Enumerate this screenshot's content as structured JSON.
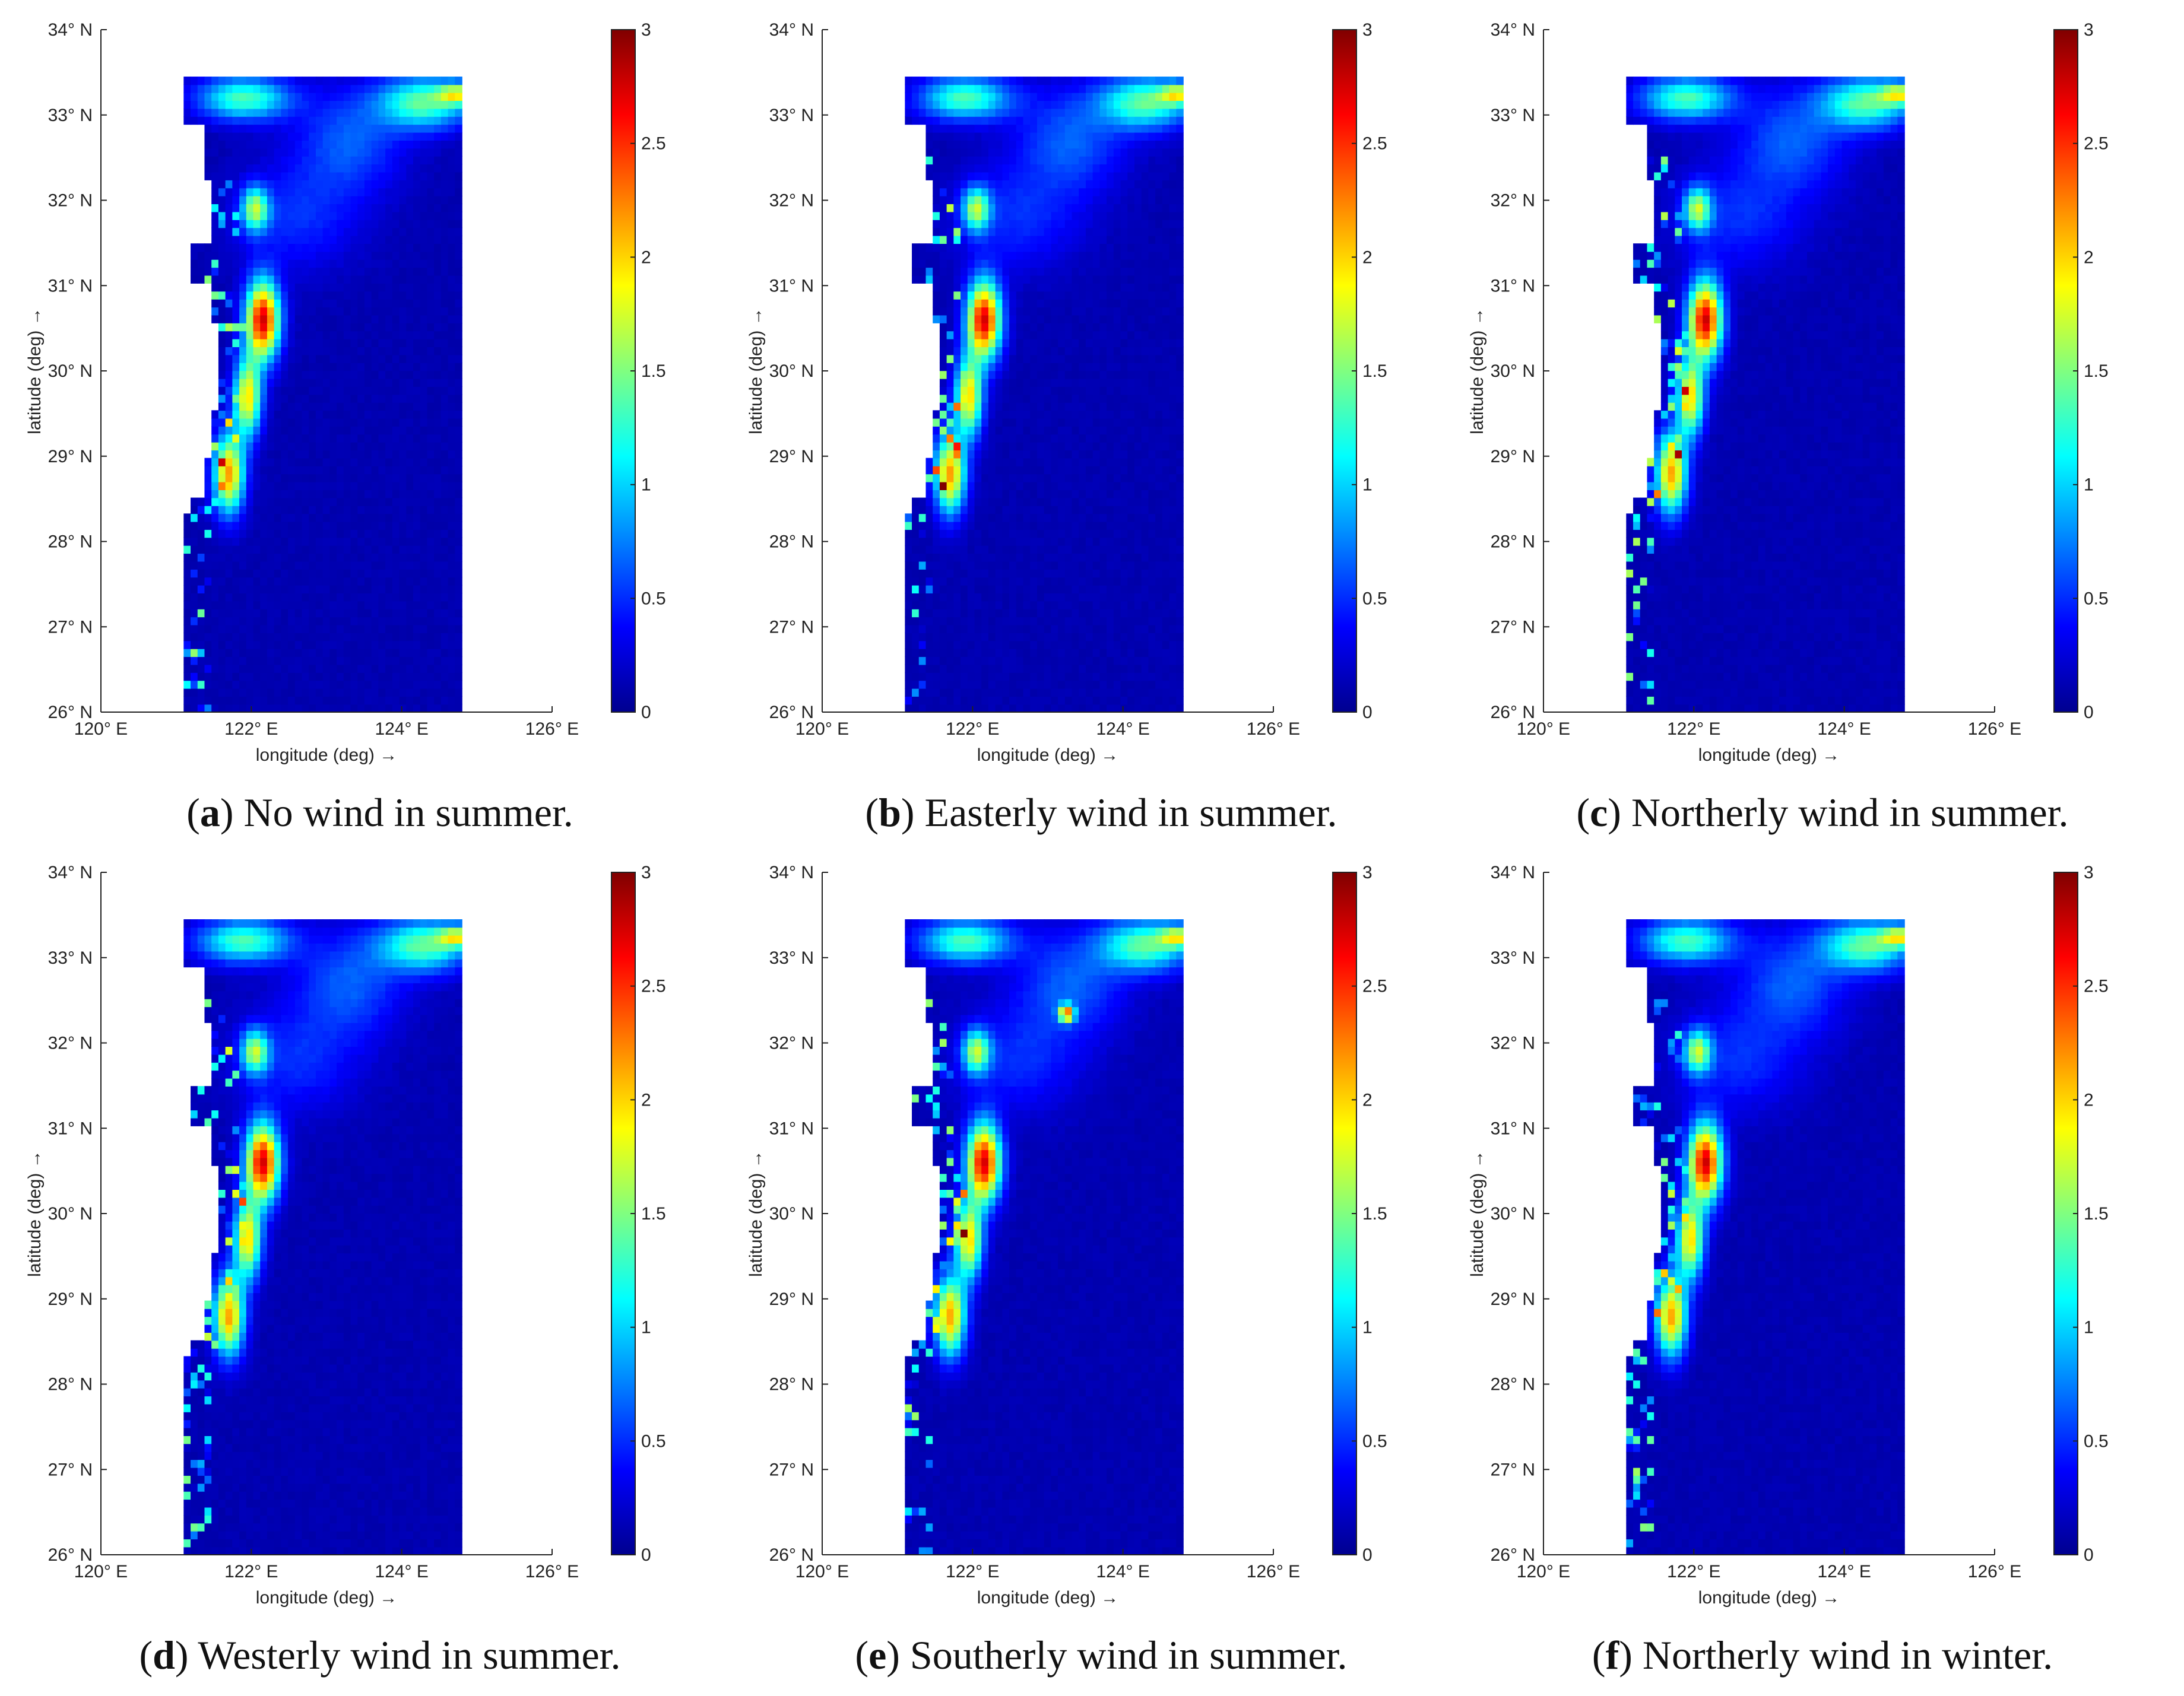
{
  "lat_ticks": [
    "34° N",
    "33° N",
    "32° N",
    "31° N",
    "30° N",
    "29° N",
    "28° N",
    "27° N",
    "26° N"
  ],
  "lon_ticks": [
    "120° E",
    "122° E",
    "124° E",
    "126° E"
  ],
  "xlabel": "longitude (deg) →",
  "ylabel": "latitude (deg) →",
  "colorbar": {
    "ticks": [
      "0",
      "0.5",
      "1",
      "1.5",
      "2",
      "2.5",
      "3"
    ],
    "colors": [
      "#00008f",
      "#0000ff",
      "#0080ff",
      "#00ffff",
      "#80ff80",
      "#ffff00",
      "#ff8000",
      "#ff0000",
      "#800000"
    ]
  },
  "panels": [
    {
      "letter": "a",
      "caption": ") No wind in summer."
    },
    {
      "letter": "b",
      "caption": ") Easterly wind in summer."
    },
    {
      "letter": "c",
      "caption": ") Northerly wind in summer."
    },
    {
      "letter": "d",
      "caption": ") Westerly wind in summer."
    },
    {
      "letter": "e",
      "caption": ") Southerly wind in summer."
    },
    {
      "letter": "f",
      "caption": ") Northerly wind in winter."
    }
  ]
}
